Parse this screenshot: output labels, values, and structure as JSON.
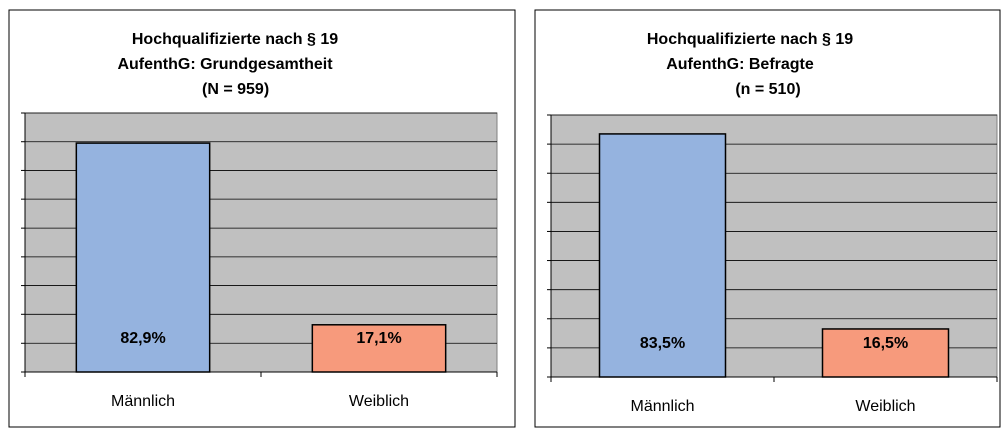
{
  "chart_data": [
    {
      "type": "bar",
      "title": [
        "Hochqualifizierte nach § 19",
        "AufenthG: Grundgesamtheit",
        "(N = 959)"
      ],
      "categories": [
        "Männlich",
        "Weiblich"
      ],
      "values": [
        82.9,
        17.1
      ],
      "value_labels": [
        "82,9%",
        "17,1%"
      ],
      "colors": [
        "#95b3df",
        "#f79a7c"
      ],
      "ylim": [
        0,
        93.8
      ],
      "yticks": [
        0,
        10.4,
        20.9,
        31.3,
        41.7,
        52.1,
        62.6,
        73,
        83.4,
        93.8
      ],
      "grid": true
    },
    {
      "type": "bar",
      "title": [
        "Hochqualifizierte nach § 19",
        "AufenthG: Befragte",
        "(n = 510)"
      ],
      "categories": [
        "Männlich",
        "Weiblich"
      ],
      "values": [
        83.5,
        16.5
      ],
      "value_labels": [
        "83,5%",
        "16,5%"
      ],
      "colors": [
        "#95b3df",
        "#f79a7c"
      ],
      "ylim": [
        0,
        90
      ],
      "yticks": [
        0,
        10,
        20,
        30,
        40,
        50,
        60,
        70,
        80,
        90
      ],
      "grid": true
    }
  ]
}
